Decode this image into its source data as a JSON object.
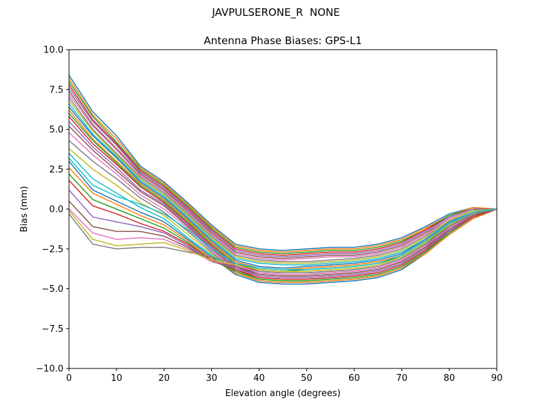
{
  "figure": {
    "suptitle": "JAVPULSERONE_R  NONE"
  },
  "chart_data": {
    "type": "line",
    "title": "Antenna Phase Biases: GPS-L1",
    "xlabel": "Elevation angle (degrees)",
    "ylabel": "Bias (mm)",
    "xlim": [
      0,
      90
    ],
    "ylim": [
      -10,
      10
    ],
    "xticks": [
      0,
      10,
      20,
      30,
      40,
      50,
      60,
      70,
      80,
      90
    ],
    "yticks": [
      -10.0,
      -7.5,
      -5.0,
      -2.5,
      0.0,
      2.5,
      5.0,
      7.5,
      10.0
    ],
    "ytick_labels": [
      "−10.0",
      "−7.5",
      "−5.0",
      "−2.5",
      "0.0",
      "2.5",
      "5.0",
      "7.5",
      "10.0"
    ],
    "grid": false,
    "legend": "none",
    "colors": [
      "#1f77b4",
      "#ff7f0e",
      "#2ca02c",
      "#d62728",
      "#9467bd",
      "#8c564b",
      "#e377c2",
      "#7f7f7f",
      "#bcbd22",
      "#17becf"
    ],
    "x": [
      0,
      5,
      10,
      15,
      20,
      25,
      30,
      35,
      40,
      45,
      50,
      55,
      60,
      65,
      70,
      75,
      80,
      85,
      90
    ],
    "series": [
      {
        "values": [
          8.4,
          6.1,
          4.6,
          2.7,
          1.7,
          0.4,
          -1.0,
          -2.2,
          -2.5,
          -2.6,
          -2.5,
          -2.4,
          -2.4,
          -2.2,
          -1.8,
          -1.1,
          -0.3,
          0.1,
          0.0
        ]
      },
      {
        "values": [
          8.2,
          5.9,
          4.4,
          2.6,
          1.6,
          0.3,
          -1.1,
          -2.3,
          -2.6,
          -2.7,
          -2.6,
          -2.5,
          -2.5,
          -2.3,
          -1.9,
          -1.2,
          -0.4,
          0.1,
          0.0
        ]
      },
      {
        "values": [
          8.0,
          5.8,
          4.2,
          2.5,
          1.5,
          0.2,
          -1.2,
          -2.4,
          -2.7,
          -2.8,
          -2.7,
          -2.6,
          -2.6,
          -2.4,
          -2.0,
          -1.3,
          -0.4,
          0.0,
          0.0
        ]
      },
      {
        "values": [
          7.8,
          5.6,
          4.1,
          2.4,
          1.4,
          0.1,
          -1.3,
          -2.5,
          -2.8,
          -2.9,
          -2.8,
          -2.7,
          -2.7,
          -2.5,
          -2.1,
          -1.3,
          -0.5,
          0.0,
          0.0
        ]
      },
      {
        "values": [
          7.6,
          5.5,
          4.0,
          2.3,
          1.3,
          0.0,
          -1.4,
          -2.6,
          -2.9,
          -3.0,
          -2.9,
          -2.8,
          -2.8,
          -2.6,
          -2.2,
          -1.4,
          -0.5,
          0.0,
          0.0
        ]
      },
      {
        "values": [
          7.4,
          5.3,
          3.8,
          2.2,
          1.2,
          -0.1,
          -1.5,
          -2.7,
          -3.0,
          -3.1,
          -3.0,
          -2.9,
          -2.9,
          -2.7,
          -2.3,
          -1.5,
          -0.6,
          -0.1,
          0.0
        ]
      },
      {
        "values": [
          7.2,
          5.2,
          3.7,
          2.1,
          1.1,
          -0.2,
          -1.6,
          -2.8,
          -3.1,
          -3.2,
          -3.1,
          -3.0,
          -3.0,
          -2.8,
          -2.4,
          -1.6,
          -0.6,
          -0.1,
          0.0
        ]
      },
      {
        "values": [
          7.0,
          5.0,
          3.5,
          2.0,
          1.0,
          -0.3,
          -1.7,
          -2.9,
          -3.2,
          -3.3,
          -3.3,
          -3.2,
          -3.1,
          -2.9,
          -2.5,
          -1.7,
          -0.7,
          -0.1,
          0.0
        ]
      },
      {
        "values": [
          6.8,
          4.9,
          3.4,
          1.9,
          0.9,
          -0.4,
          -1.8,
          -3.0,
          -3.3,
          -3.4,
          -3.4,
          -3.3,
          -3.2,
          -3.0,
          -2.6,
          -1.8,
          -0.7,
          -0.1,
          0.0
        ]
      },
      {
        "values": [
          6.6,
          4.7,
          3.3,
          1.8,
          0.8,
          -0.5,
          -1.9,
          -3.1,
          -3.4,
          -3.5,
          -3.5,
          -3.4,
          -3.3,
          -3.1,
          -2.7,
          -1.9,
          -0.8,
          -0.2,
          0.0
        ]
      },
      {
        "values": [
          6.4,
          4.6,
          3.2,
          1.7,
          0.7,
          -0.6,
          -2.0,
          -3.2,
          -3.6,
          -3.7,
          -3.6,
          -3.5,
          -3.4,
          -3.2,
          -2.8,
          -1.9,
          -0.8,
          -0.2,
          0.0
        ]
      },
      {
        "values": [
          6.2,
          4.4,
          3.0,
          1.6,
          0.6,
          -0.7,
          -2.1,
          -3.3,
          -3.7,
          -3.8,
          -3.7,
          -3.6,
          -3.5,
          -3.3,
          -2.9,
          -2.0,
          -0.9,
          -0.2,
          0.0
        ]
      },
      {
        "values": [
          6.0,
          4.3,
          2.9,
          1.5,
          0.5,
          -0.8,
          -2.2,
          -3.4,
          -3.8,
          -3.9,
          -3.8,
          -3.7,
          -3.6,
          -3.4,
          -3.0,
          -2.1,
          -0.9,
          -0.2,
          0.0
        ]
      },
      {
        "values": [
          5.8,
          4.1,
          2.8,
          1.4,
          0.4,
          -0.9,
          -2.3,
          -3.5,
          -3.9,
          -4.0,
          -4.0,
          -3.9,
          -3.8,
          -3.6,
          -3.1,
          -2.2,
          -1.0,
          -0.3,
          0.0
        ]
      },
      {
        "values": [
          5.5,
          3.9,
          2.6,
          1.2,
          0.3,
          -1.0,
          -2.4,
          -3.6,
          -4.0,
          -4.1,
          -4.1,
          -4.0,
          -3.9,
          -3.7,
          -3.2,
          -2.3,
          -1.0,
          -0.3,
          0.0
        ]
      },
      {
        "values": [
          5.2,
          3.7,
          2.4,
          1.1,
          0.2,
          -1.1,
          -2.5,
          -3.7,
          -4.1,
          -4.2,
          -4.2,
          -4.1,
          -4.0,
          -3.8,
          -3.3,
          -2.4,
          -1.1,
          -0.3,
          0.0
        ]
      },
      {
        "values": [
          4.8,
          3.4,
          2.2,
          0.9,
          0.0,
          -1.2,
          -2.6,
          -3.8,
          -4.2,
          -4.3,
          -4.3,
          -4.2,
          -4.1,
          -3.9,
          -3.4,
          -2.5,
          -1.2,
          -0.4,
          0.0
        ]
      },
      {
        "values": [
          4.3,
          3.0,
          1.9,
          0.7,
          -0.2,
          -1.4,
          -2.7,
          -3.9,
          -4.3,
          -4.4,
          -4.4,
          -4.3,
          -4.2,
          -4.0,
          -3.5,
          -2.6,
          -1.3,
          -0.4,
          0.0
        ]
      },
      {
        "values": [
          3.8,
          2.5,
          1.5,
          0.4,
          -0.4,
          -1.6,
          -2.8,
          -4.0,
          -4.4,
          -4.5,
          -4.5,
          -4.4,
          -4.3,
          -4.1,
          -3.6,
          -2.7,
          -1.4,
          -0.5,
          0.0
        ]
      },
      {
        "values": [
          3.5,
          1.9,
          1.0,
          0.1,
          -0.6,
          -1.8,
          -2.9,
          -4.0,
          -4.5,
          -4.6,
          -4.6,
          -4.5,
          -4.4,
          -4.2,
          -3.7,
          -2.7,
          -1.5,
          -0.5,
          0.0
        ]
      },
      {
        "values": [
          3.0,
          1.2,
          0.5,
          -0.2,
          -0.8,
          -1.9,
          -3.0,
          -4.1,
          -4.6,
          -4.7,
          -4.7,
          -4.6,
          -4.5,
          -4.3,
          -3.8,
          -2.8,
          -1.6,
          -0.6,
          0.0
        ]
      },
      {
        "values": [
          2.6,
          1.0,
          0.3,
          -0.4,
          -1.0,
          -2.0,
          -3.1,
          -4.0,
          -4.5,
          -4.6,
          -4.6,
          -4.5,
          -4.4,
          -4.2,
          -3.7,
          -2.8,
          -1.6,
          -0.6,
          0.0
        ]
      },
      {
        "values": [
          2.2,
          0.6,
          0.0,
          -0.6,
          -1.2,
          -2.1,
          -3.2,
          -3.9,
          -4.4,
          -4.5,
          -4.5,
          -4.4,
          -4.3,
          -4.1,
          -3.6,
          -2.7,
          -1.5,
          -0.5,
          0.0
        ]
      },
      {
        "values": [
          1.8,
          0.2,
          -0.3,
          -0.9,
          -1.4,
          -2.2,
          -3.2,
          -3.8,
          -4.3,
          -4.4,
          -4.4,
          -4.3,
          -4.2,
          -4.0,
          -3.5,
          -2.6,
          -1.4,
          -0.5,
          0.0
        ]
      },
      {
        "values": [
          1.2,
          -0.5,
          -0.8,
          -1.1,
          -1.5,
          -2.3,
          -3.3,
          -3.7,
          -4.2,
          -4.3,
          -4.3,
          -4.2,
          -4.1,
          -3.9,
          -3.4,
          -2.5,
          -1.4,
          -0.4,
          0.0
        ]
      },
      {
        "values": [
          0.5,
          -1.1,
          -1.4,
          -1.4,
          -1.7,
          -2.4,
          -3.3,
          -3.6,
          -4.1,
          -4.2,
          -4.2,
          -4.1,
          -4.0,
          -3.8,
          -3.3,
          -2.4,
          -1.3,
          -0.4,
          0.0
        ]
      },
      {
        "values": [
          0.0,
          -1.5,
          -1.9,
          -1.8,
          -1.9,
          -2.5,
          -3.3,
          -3.5,
          -4.0,
          -4.1,
          -4.1,
          -4.0,
          -3.9,
          -3.7,
          -3.2,
          -2.3,
          -1.2,
          -0.3,
          0.0
        ]
      },
      {
        "values": [
          -0.3,
          -2.2,
          -2.5,
          -2.4,
          -2.4,
          -2.7,
          -3.0,
          -3.4,
          -3.9,
          -4.0,
          -4.0,
          -3.9,
          -3.8,
          -3.6,
          -3.1,
          -2.2,
          -1.1,
          -0.3,
          0.0
        ]
      },
      {
        "values": [
          -0.1,
          -1.9,
          -2.3,
          -2.2,
          -2.1,
          -2.6,
          -3.2,
          -3.5,
          -3.8,
          -3.9,
          -3.9,
          -3.8,
          -3.7,
          -3.5,
          -3.0,
          -2.1,
          -1.0,
          -0.2,
          0.0
        ]
      },
      {
        "values": [
          3.2,
          1.5,
          0.8,
          0.3,
          -0.3,
          -1.3,
          -2.5,
          -3.4,
          -3.7,
          -3.8,
          -3.8,
          -3.7,
          -3.6,
          -3.4,
          -2.9,
          -2.0,
          -0.9,
          -0.2,
          0.0
        ]
      }
    ]
  }
}
